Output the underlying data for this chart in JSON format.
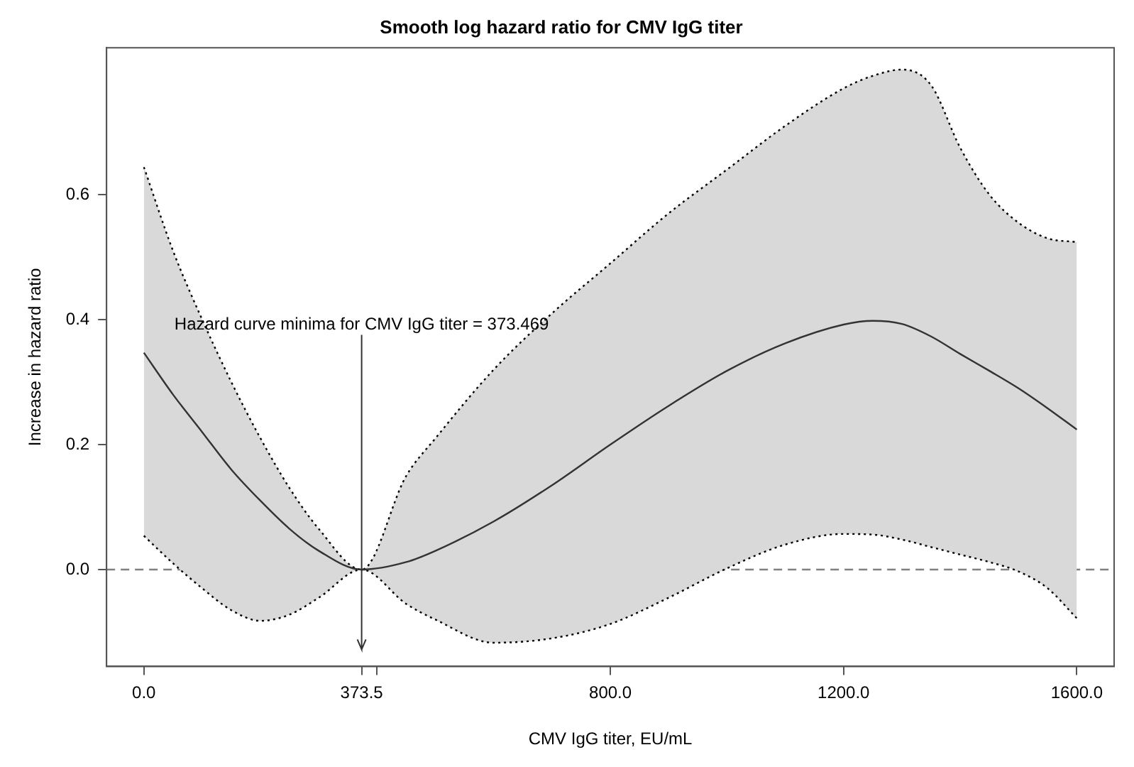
{
  "chart_data": {
    "type": "line",
    "title": "Smooth log hazard ratio for CMV IgG titer",
    "xlabel": "CMV IgG titer, EU/mL",
    "ylabel": "Increase in hazard ratio",
    "x": [
      0,
      50,
      100,
      150,
      200,
      250,
      300,
      373.469,
      450,
      500,
      600,
      700,
      800,
      900,
      1000,
      1100,
      1200,
      1250,
      1300,
      1350,
      1400,
      1450,
      1500,
      1550,
      1600
    ],
    "series": [
      {
        "color": "#333333",
        "line_style": "solid",
        "values": [
          0.347,
          0.28,
          0.22,
          0.16,
          0.11,
          0.065,
          0.03,
          0,
          0.012,
          0.03,
          0.077,
          0.135,
          0.2,
          0.262,
          0.318,
          0.362,
          0.392,
          0.398,
          0.393,
          0.373,
          0.345,
          0.318,
          0.29,
          0.258,
          0.224
        ],
        "lower": [
          0.054,
          0.01,
          -0.03,
          -0.065,
          -0.082,
          -0.072,
          -0.045,
          0,
          -0.055,
          -0.08,
          -0.117,
          -0.11,
          -0.087,
          -0.045,
          0.002,
          0.04,
          0.057,
          0.056,
          0.048,
          0.036,
          0.024,
          0.012,
          -0.003,
          -0.03,
          -0.078
        ],
        "upper": [
          0.644,
          0.51,
          0.4,
          0.3,
          0.21,
          0.13,
          0.065,
          0,
          0.15,
          0.21,
          0.32,
          0.41,
          0.49,
          0.57,
          0.64,
          0.71,
          0.77,
          0.79,
          0.8,
          0.775,
          0.675,
          0.6,
          0.555,
          0.53,
          0.524
        ]
      },
      {
        "color": "#000000",
        "line_style": "dotted",
        "values": [
          0.054,
          0.01,
          -0.03,
          -0.065,
          -0.082,
          -0.072,
          -0.045,
          0,
          -0.055,
          -0.08,
          -0.117,
          -0.11,
          -0.087,
          -0.045,
          0.002,
          0.04,
          0.057,
          0.056,
          0.048,
          0.036,
          0.024,
          0.012,
          -0.003,
          -0.03,
          -0.078
        ]
      },
      {
        "color": "#000000",
        "line_style": "dotted",
        "values": [
          0.644,
          0.51,
          0.4,
          0.3,
          0.21,
          0.13,
          0.065,
          0,
          0.15,
          0.21,
          0.32,
          0.41,
          0.49,
          0.57,
          0.64,
          0.71,
          0.77,
          0.79,
          0.8,
          0.775,
          0.675,
          0.6,
          0.555,
          0.53,
          0.524
        ]
      }
    ],
    "ref_lines": [
      {
        "axis": "y",
        "value": 0,
        "color": "#808080",
        "line_style": "dashed"
      },
      {
        "axis": "x",
        "value": 373.469,
        "label": "Hazard curve minima for CMV IgG titer = 373.469",
        "color": "#333333",
        "line_style": "solid"
      }
    ],
    "xlim": [
      -64,
      1664
    ],
    "xticks": [
      {
        "value": 0,
        "label": "0.0"
      },
      {
        "value": 373.5,
        "label": "373.5"
      },
      {
        "value": 400,
        "label": null
      },
      {
        "value": 800,
        "label": "800.0"
      },
      {
        "value": 1200,
        "label": "1200.0"
      },
      {
        "value": 1600,
        "label": "1600.0"
      }
    ],
    "ylim": [
      -0.155,
      0.835
    ],
    "yticks": [
      {
        "value": 0,
        "label": "0.0"
      },
      {
        "value": 0.2,
        "label": "0.2"
      },
      {
        "value": 0.4,
        "label": "0.4"
      },
      {
        "value": 0.6,
        "label": "0.6"
      }
    ],
    "grid": false,
    "legend": false,
    "marker": "none"
  }
}
